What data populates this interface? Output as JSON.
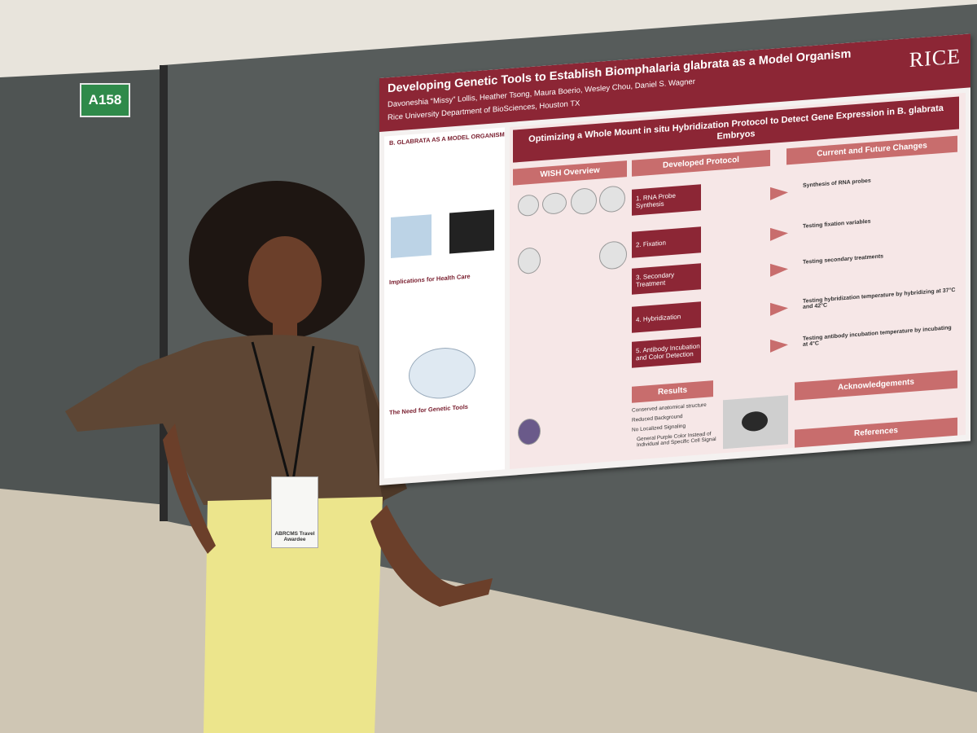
{
  "booth": {
    "label": "A158"
  },
  "poster": {
    "title": "Developing Genetic Tools to Establish Biomphalaria glabrata as a Model Organism",
    "authors": "Davoneshia “Missy” Lollis, Heather Tsong, Maura Boerio, Wesley Chou, Daniel S. Wagner",
    "affiliation": "Rice University Department of BioSciences, Houston TX",
    "logo": "RICE",
    "banner": "Optimizing a Whole Mount in situ Hybridization Protocol to Detect Gene Expression in B. glabrata Embryos",
    "left_headings": [
      "B. GLABRATA AS A MODEL ORGANISM",
      "Implications for Health Care",
      "The Need for Genetic Tools"
    ],
    "sections": [
      "WISH Overview",
      "Developed Protocol",
      "Current and Future Changes"
    ],
    "steps": [
      "1. RNA Probe Synthesis",
      "2. Fixation",
      "3. Secondary Treatment",
      "4. Hybridization",
      "5. Antibody Incubation and Color Detection"
    ],
    "changes": [
      "Synthesis of RNA probes",
      "Testing fixation variables",
      "Testing secondary treatments",
      "Testing hybridization temperature by hybridizing at 37°C and 42°C",
      "Testing antibody incubation temperature by incubating at 4°C"
    ],
    "results": {
      "heading": "Results",
      "items": [
        "Conserved anatomical structure",
        "Reduced Background",
        "No Localized Signaling",
        "General Purple Color Instead of Individual and Specific Cell Signal"
      ]
    },
    "acknowledgements": "Acknowledgements",
    "references": "References"
  },
  "badge": {
    "text": "ABRCMS Travel Awardee"
  }
}
